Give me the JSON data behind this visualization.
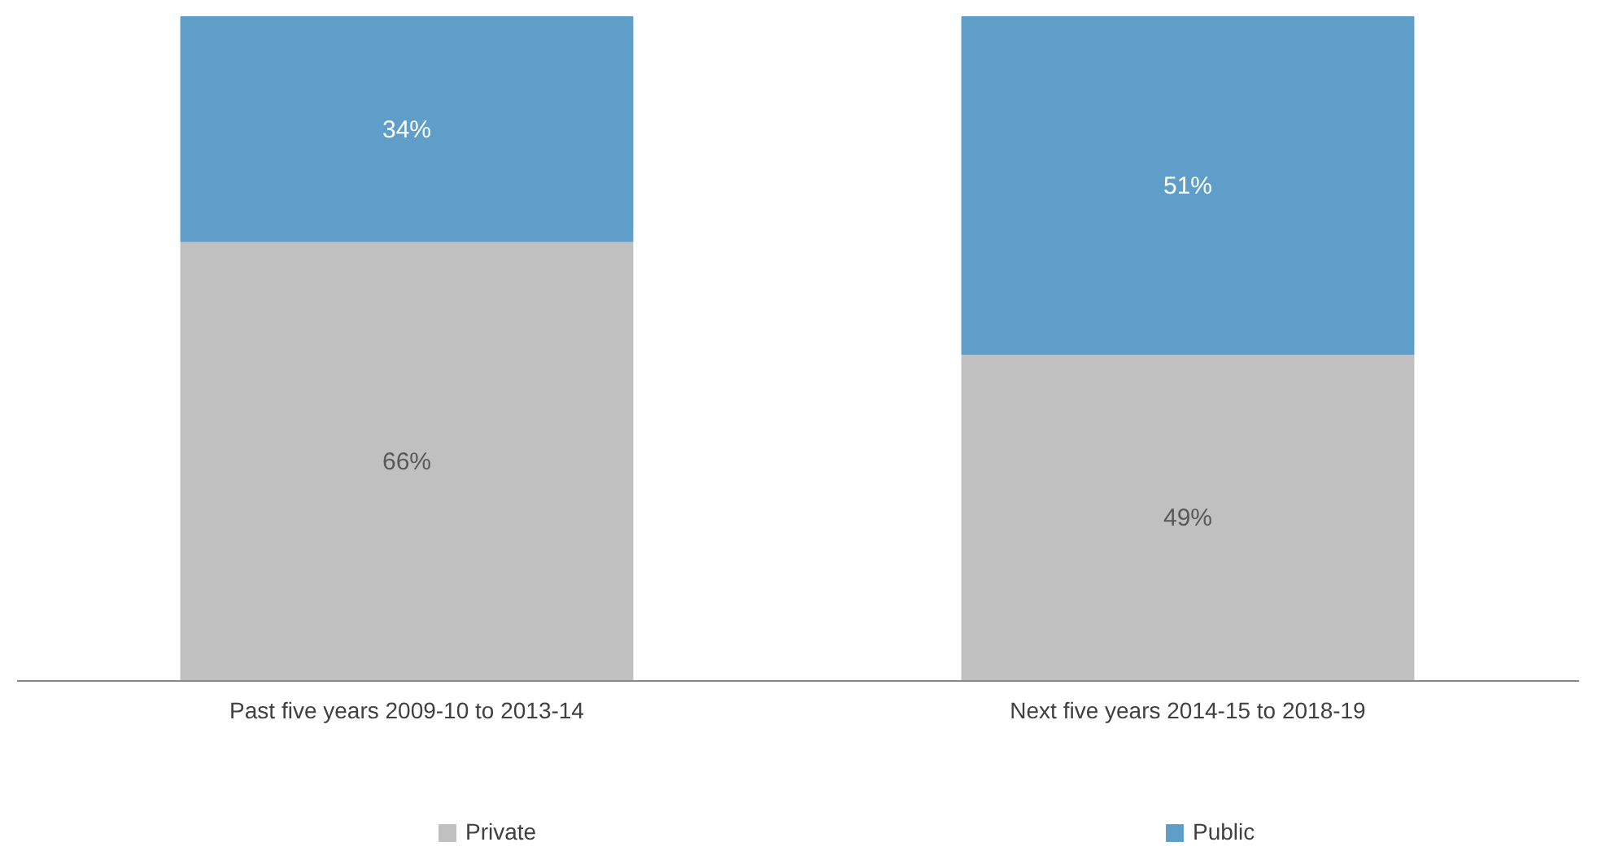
{
  "chart_data": {
    "type": "bar",
    "stacked": true,
    "legend": "bottom",
    "categories": [
      "Past five years 2009-10 to 2013-14",
      "Next five years 2014-15 to 2018-19"
    ],
    "series": [
      {
        "name": "Private",
        "color": "#c0c0c0",
        "values": [
          66,
          49
        ],
        "value_labels": [
          "66%",
          "49%"
        ]
      },
      {
        "name": "Public",
        "color": "#5f9ec8",
        "values": [
          34,
          51
        ],
        "value_labels": [
          "34%",
          "51%"
        ]
      }
    ]
  }
}
